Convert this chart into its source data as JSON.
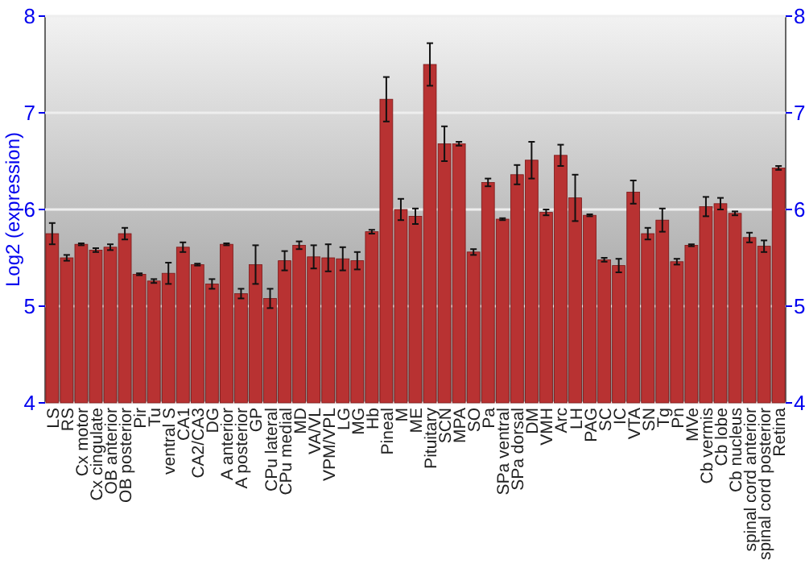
{
  "chart_data": {
    "type": "bar",
    "ylabel": "Log2 (expression)",
    "categories": [
      "LS",
      "RS",
      "Cx motor",
      "Cx cingulate",
      "OB anterior",
      "OB posterior",
      "Pir",
      "Tu",
      "ventral S",
      "CA1",
      "CA2/CA3",
      "DG",
      "A anterior",
      "A posterior",
      "GP",
      "CPu lateral",
      "CPu medial",
      "MD",
      "VA/VL",
      "VPM/VPL",
      "LG",
      "MG",
      "Hb",
      "Pineal",
      "M",
      "ME",
      "Pituitary",
      "SCN",
      "MPA",
      "SO",
      "Pa",
      "SPa ventral",
      "SPa dorsal",
      "DM",
      "VMH",
      "Arc",
      "LH",
      "PAG",
      "SC",
      "IC",
      "VTA",
      "SN",
      "Tg",
      "Pn",
      "MVe",
      "Cb vermis",
      "Cb lobe",
      "Cb nucleus",
      "spinal cord anterior",
      "spinal cord posterior",
      "Retina"
    ],
    "values": [
      5.75,
      5.5,
      5.64,
      5.58,
      5.61,
      5.75,
      5.33,
      5.26,
      5.34,
      5.61,
      5.43,
      5.23,
      5.64,
      5.13,
      5.43,
      5.08,
      5.47,
      5.63,
      5.51,
      5.5,
      5.49,
      5.47,
      5.77,
      7.14,
      6.0,
      5.93,
      7.5,
      6.68,
      6.68,
      5.56,
      6.28,
      5.9,
      6.36,
      6.51,
      5.97,
      6.56,
      6.12,
      5.94,
      5.48,
      5.42,
      6.18,
      5.75,
      5.89,
      5.46,
      5.63,
      6.03,
      6.06,
      5.96,
      5.71,
      5.62,
      6.43
    ],
    "errors": [
      0.11,
      0.03,
      0.01,
      0.02,
      0.03,
      0.06,
      0.01,
      0.02,
      0.11,
      0.05,
      0.01,
      0.05,
      0.01,
      0.05,
      0.2,
      0.1,
      0.1,
      0.04,
      0.12,
      0.14,
      0.12,
      0.09,
      0.02,
      0.23,
      0.11,
      0.08,
      0.22,
      0.18,
      0.02,
      0.03,
      0.04,
      0.01,
      0.1,
      0.19,
      0.03,
      0.11,
      0.24,
      0.01,
      0.02,
      0.07,
      0.12,
      0.06,
      0.12,
      0.03,
      0.01,
      0.1,
      0.06,
      0.02,
      0.05,
      0.06,
      0.02
    ],
    "color": "#b83232",
    "ylim": [
      4,
      8
    ],
    "yticks": [
      4,
      5,
      6,
      7,
      8
    ],
    "y2lim": [
      4,
      8
    ],
    "y2ticks": [
      4,
      5,
      6,
      7,
      8
    ],
    "grid": "y"
  }
}
